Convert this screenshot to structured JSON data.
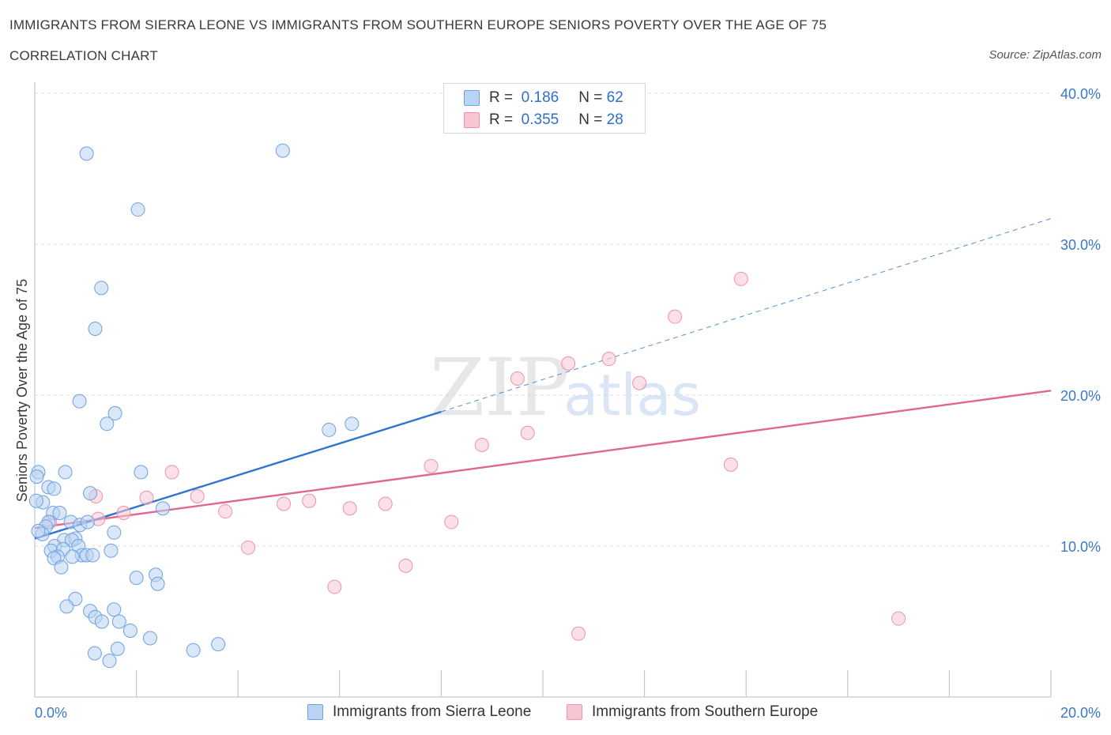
{
  "title": "IMMIGRANTS FROM SIERRA LEONE VS IMMIGRANTS FROM SOUTHERN EUROPE SENIORS POVERTY OVER THE AGE OF 75",
  "subtitle": "CORRELATION CHART",
  "source": "Source: ZipAtlas.com",
  "watermark": {
    "zip": "ZIP",
    "atlas": "atlas"
  },
  "legend": {
    "rows": [
      {
        "r_label": "R =",
        "r_value": "0.186",
        "n_label": "N =",
        "n_value": "62"
      },
      {
        "r_label": "R =",
        "r_value": "0.355",
        "n_label": "N =",
        "n_value": "28"
      }
    ]
  },
  "colors": {
    "blue_fill": "#b9d3f4",
    "blue_stroke": "#6fa1de",
    "blue_line": "#2f74d0",
    "pink_fill": "#f8c6d3",
    "pink_stroke": "#eb93ae",
    "pink_line": "#e06793",
    "tick_text": "#3a78c8",
    "grid": "#dcdcdc"
  },
  "chart_data": {
    "type": "scatter",
    "title": "IMMIGRANTS FROM SIERRA LEONE VS IMMIGRANTS FROM SOUTHERN EUROPE SENIORS POVERTY OVER THE AGE OF 75",
    "xlabel": "",
    "ylabel": "Seniors Poverty Over the Age of 75",
    "xlim": [
      0,
      20
    ],
    "ylim": [
      0,
      40
    ],
    "x_tick_labels": [
      {
        "value": 0,
        "label": "0.0%"
      },
      {
        "value": 20,
        "label": "20.0%"
      }
    ],
    "y_tick_labels": [
      {
        "value": 10,
        "label": "10.0%"
      },
      {
        "value": 20,
        "label": "20.0%"
      },
      {
        "value": 30,
        "label": "30.0%"
      },
      {
        "value": 40,
        "label": "40.0%"
      }
    ],
    "y_gridlines": [
      10,
      20,
      30,
      40
    ],
    "series": [
      {
        "name": "Immigrants from Sierra Leone",
        "color": "#6fa1de",
        "r": 0.186,
        "n": 62,
        "trend": {
          "x0": 0,
          "y0": 10.5,
          "x1": 8.0,
          "y1": 18.9,
          "dashed_to_x": 20,
          "dashed_to_y": 31.7
        },
        "points": [
          [
            1.02,
            36.0
          ],
          [
            4.88,
            36.2
          ],
          [
            2.03,
            32.3
          ],
          [
            1.31,
            27.1
          ],
          [
            1.19,
            24.4
          ],
          [
            0.88,
            19.6
          ],
          [
            1.58,
            18.8
          ],
          [
            1.42,
            18.1
          ],
          [
            5.79,
            17.7
          ],
          [
            6.24,
            18.1
          ],
          [
            0.07,
            14.9
          ],
          [
            0.6,
            14.9
          ],
          [
            2.09,
            14.9
          ],
          [
            0.04,
            14.6
          ],
          [
            0.27,
            13.9
          ],
          [
            0.38,
            13.8
          ],
          [
            1.09,
            13.5
          ],
          [
            0.16,
            12.9
          ],
          [
            0.03,
            13.0
          ],
          [
            2.52,
            12.5
          ],
          [
            0.36,
            12.2
          ],
          [
            0.49,
            12.2
          ],
          [
            0.27,
            11.6
          ],
          [
            0.71,
            11.6
          ],
          [
            0.89,
            11.4
          ],
          [
            1.04,
            11.6
          ],
          [
            0.22,
            11.3
          ],
          [
            1.56,
            10.9
          ],
          [
            0.15,
            10.8
          ],
          [
            0.58,
            10.4
          ],
          [
            0.8,
            10.5
          ],
          [
            0.73,
            10.4
          ],
          [
            0.39,
            10.0
          ],
          [
            0.32,
            9.7
          ],
          [
            0.56,
            9.8
          ],
          [
            0.86,
            10.0
          ],
          [
            1.5,
            9.7
          ],
          [
            0.45,
            9.3
          ],
          [
            0.93,
            9.4
          ],
          [
            1.02,
            9.4
          ],
          [
            0.74,
            9.3
          ],
          [
            0.38,
            9.2
          ],
          [
            0.52,
            8.6
          ],
          [
            1.14,
            9.4
          ],
          [
            2.0,
            7.9
          ],
          [
            2.38,
            8.1
          ],
          [
            2.42,
            7.5
          ],
          [
            0.8,
            6.5
          ],
          [
            0.63,
            6.0
          ],
          [
            1.09,
            5.7
          ],
          [
            1.56,
            5.8
          ],
          [
            1.19,
            5.3
          ],
          [
            1.32,
            5.0
          ],
          [
            1.66,
            5.0
          ],
          [
            1.88,
            4.4
          ],
          [
            2.27,
            3.9
          ],
          [
            3.61,
            3.5
          ],
          [
            1.63,
            3.2
          ],
          [
            3.12,
            3.1
          ],
          [
            1.18,
            2.9
          ],
          [
            1.47,
            2.4
          ],
          [
            0.07,
            11.0
          ]
        ]
      },
      {
        "name": "Immigrants from Southern Europe",
        "color": "#eb93ae",
        "r": 0.355,
        "n": 28,
        "trend": {
          "x0": 0,
          "y0": 11.2,
          "x1": 20,
          "y1": 20.3
        },
        "points": [
          [
            13.9,
            27.7
          ],
          [
            12.6,
            25.2
          ],
          [
            11.3,
            22.4
          ],
          [
            10.5,
            22.1
          ],
          [
            9.5,
            21.1
          ],
          [
            11.9,
            20.8
          ],
          [
            9.7,
            17.5
          ],
          [
            8.8,
            16.7
          ],
          [
            13.7,
            15.4
          ],
          [
            7.8,
            15.3
          ],
          [
            2.7,
            14.9
          ],
          [
            1.2,
            13.3
          ],
          [
            2.2,
            13.2
          ],
          [
            3.2,
            13.3
          ],
          [
            4.9,
            12.8
          ],
          [
            5.4,
            13.0
          ],
          [
            6.2,
            12.5
          ],
          [
            6.9,
            12.8
          ],
          [
            1.75,
            12.2
          ],
          [
            3.75,
            12.3
          ],
          [
            1.25,
            11.8
          ],
          [
            0.3,
            11.6
          ],
          [
            8.2,
            11.6
          ],
          [
            4.2,
            9.9
          ],
          [
            7.3,
            8.7
          ],
          [
            5.9,
            7.3
          ],
          [
            17.0,
            5.2
          ],
          [
            10.7,
            4.2
          ]
        ]
      }
    ]
  },
  "bottom_legend": [
    {
      "label": "Immigrants from Sierra Leone"
    },
    {
      "label": "Immigrants from Southern Europe"
    }
  ]
}
